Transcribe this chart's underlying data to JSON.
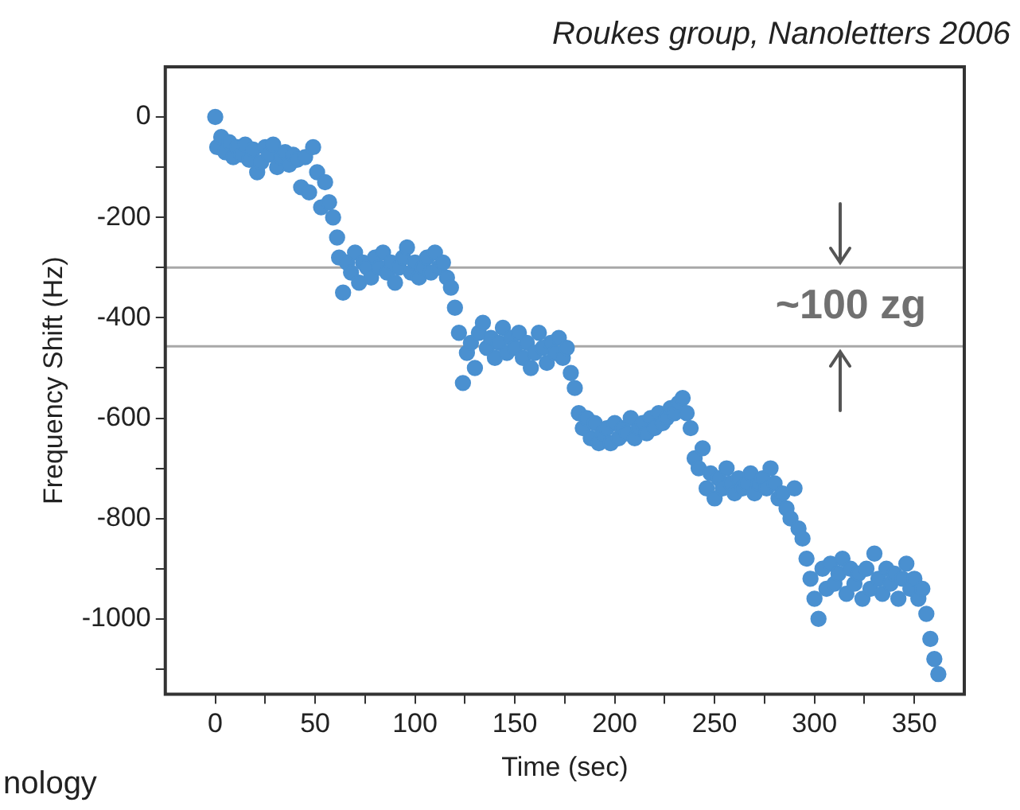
{
  "chart_data": {
    "type": "scatter",
    "xlabel": "Time (sec)",
    "ylabel": "Frequency Shift (Hz)",
    "annotations": [
      "Roukes group, Nanoletters 2006",
      "nology",
      "~100 zg"
    ],
    "xlim": [
      -25,
      375
    ],
    "ylim": [
      -1150,
      100
    ],
    "xticks": [
      0,
      {
        "value": 25,
        "label": null
      },
      50,
      {
        "value": 75,
        "label": null
      },
      100,
      {
        "value": 125,
        "label": null
      },
      150,
      {
        "value": 175,
        "label": null
      },
      200,
      {
        "value": 225,
        "label": null
      },
      250,
      {
        "value": 275,
        "label": null
      },
      300,
      {
        "value": 325,
        "label": null
      },
      350
    ],
    "yticks": [
      0,
      {
        "value": -100,
        "label": null
      },
      -200,
      {
        "value": -300,
        "label": null
      },
      -400,
      {
        "value": -500,
        "label": null
      },
      -600,
      {
        "value": -700,
        "label": null
      },
      -800,
      {
        "value": -900,
        "label": null
      },
      -1000,
      {
        "value": -1100,
        "label": null
      }
    ],
    "grid": false,
    "legend": false,
    "marker": "circle",
    "ref_lines": [
      {
        "axis": "y",
        "value": -300,
        "color": "#a8a8a8"
      },
      {
        "axis": "y",
        "value": -457,
        "color": "#a8a8a8"
      }
    ],
    "series": [
      {
        "color": "#4a90d0",
        "x": [
          0,
          1,
          3,
          5,
          7,
          9,
          11,
          13,
          15,
          17,
          19,
          21,
          23,
          25,
          27,
          29,
          31,
          33,
          35,
          37,
          39,
          41,
          43,
          45,
          47,
          49,
          51,
          53,
          55,
          57,
          59,
          61,
          62,
          64,
          66,
          68,
          70,
          72,
          74,
          76,
          78,
          80,
          82,
          84,
          86,
          88,
          90,
          92,
          94,
          96,
          98,
          100,
          102,
          104,
          106,
          108,
          110,
          112,
          114,
          116,
          118,
          120,
          122,
          124,
          126,
          128,
          130,
          132,
          134,
          136,
          138,
          140,
          142,
          144,
          146,
          148,
          150,
          152,
          154,
          156,
          158,
          160,
          162,
          164,
          166,
          168,
          170,
          172,
          174,
          176,
          178,
          180,
          182,
          184,
          186,
          188,
          190,
          192,
          194,
          196,
          198,
          200,
          202,
          204,
          206,
          208,
          210,
          212,
          214,
          216,
          218,
          220,
          222,
          224,
          226,
          228,
          230,
          232,
          234,
          236,
          238,
          240,
          242,
          244,
          246,
          248,
          250,
          252,
          254,
          256,
          258,
          260,
          262,
          264,
          266,
          268,
          270,
          272,
          274,
          276,
          278,
          280,
          282,
          284,
          286,
          288,
          290,
          292,
          294,
          296,
          298,
          300,
          302,
          304,
          306,
          308,
          310,
          312,
          314,
          316,
          318,
          320,
          322,
          324,
          326,
          328,
          330,
          332,
          334,
          336,
          338,
          340,
          342,
          344,
          346,
          348,
          350,
          352,
          354,
          356,
          358,
          360,
          362
        ],
        "values": [
          0,
          -60,
          -40,
          -70,
          -50,
          -80,
          -60,
          -75,
          -55,
          -85,
          -65,
          -110,
          -90,
          -60,
          -75,
          -55,
          -100,
          -80,
          -70,
          -95,
          -75,
          -85,
          -140,
          -80,
          -150,
          -60,
          -110,
          -180,
          -130,
          -170,
          -200,
          -240,
          -280,
          -350,
          -290,
          -310,
          -270,
          -330,
          -290,
          -300,
          -320,
          -280,
          -300,
          -270,
          -310,
          -290,
          -330,
          -300,
          -280,
          -260,
          -310,
          -290,
          -320,
          -300,
          -280,
          -310,
          -270,
          -300,
          -290,
          -320,
          -340,
          -380,
          -430,
          -530,
          -470,
          -450,
          -500,
          -430,
          -410,
          -460,
          -440,
          -480,
          -450,
          -420,
          -470,
          -440,
          -460,
          -430,
          -480,
          -450,
          -500,
          -470,
          -430,
          -460,
          -490,
          -450,
          -470,
          -440,
          -480,
          -460,
          -510,
          -540,
          -590,
          -620,
          -600,
          -640,
          -610,
          -650,
          -630,
          -620,
          -650,
          -610,
          -640,
          -620,
          -630,
          -600,
          -640,
          -620,
          -610,
          -630,
          -600,
          -620,
          -590,
          -610,
          -600,
          -580,
          -590,
          -570,
          -560,
          -590,
          -620,
          -680,
          -700,
          -660,
          -740,
          -710,
          -760,
          -720,
          -740,
          -700,
          -730,
          -750,
          -720,
          -740,
          -730,
          -710,
          -750,
          -730,
          -720,
          -740,
          -700,
          -730,
          -760,
          -750,
          -780,
          -800,
          -740,
          -820,
          -840,
          -880,
          -920,
          -960,
          -1000,
          -900,
          -940,
          -890,
          -930,
          -910,
          -880,
          -950,
          -900,
          -930,
          -910,
          -960,
          -900,
          -940,
          -870,
          -920,
          -950,
          -900,
          -930,
          -910,
          -960,
          -920,
          -890,
          -940,
          -920,
          -960,
          -940,
          -990,
          -1040,
          -1080,
          -1110
        ]
      }
    ]
  }
}
